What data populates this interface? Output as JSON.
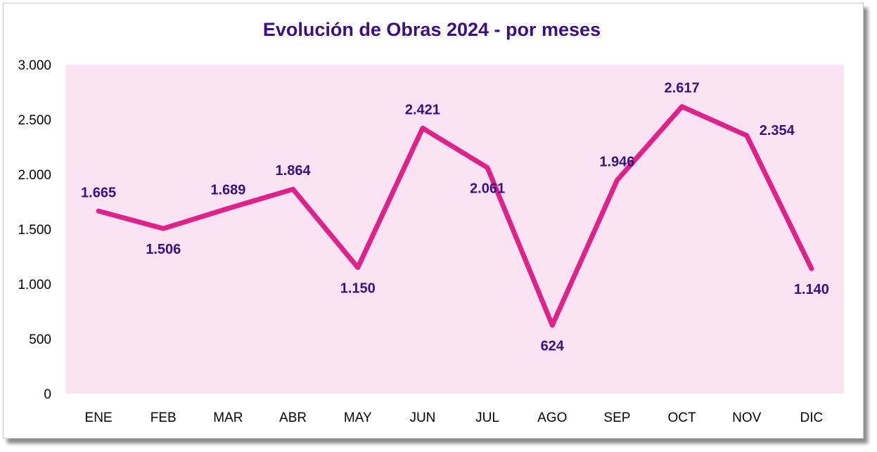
{
  "chart_data": {
    "type": "line",
    "title": "Evolución de Obras 2024 - por meses",
    "categories": [
      "ENE",
      "FEB",
      "MAR",
      "ABR",
      "MAY",
      "JUN",
      "JUL",
      "AGO",
      "SEP",
      "OCT",
      "NOV",
      "DIC"
    ],
    "values": [
      1665,
      1506,
      1689,
      1864,
      1150,
      2421,
      2061,
      624,
      1946,
      2617,
      2354,
      1140
    ],
    "value_labels": [
      "1.665",
      "1.506",
      "1.689",
      "1.864",
      "1.150",
      "2.421",
      "2.061",
      "624",
      "1.946",
      "2.617",
      "2.354",
      "1.140"
    ],
    "label_positions": [
      "above",
      "below",
      "above",
      "above",
      "below",
      "above",
      "below",
      "below",
      "above",
      "above",
      "right",
      "below"
    ],
    "ylim": [
      0,
      3000
    ],
    "yticks": [
      0,
      500,
      1000,
      1500,
      2000,
      2500,
      3000
    ],
    "ytick_labels": [
      "0",
      "500",
      "1.000",
      "1.500",
      "2.000",
      "2.500",
      "3.000"
    ],
    "grid": false,
    "legend": "none",
    "colors": {
      "line": "#e0218a",
      "plot_background": "#fae3f2",
      "title": "#3a0f82",
      "data_labels": "#3a0f82"
    }
  }
}
